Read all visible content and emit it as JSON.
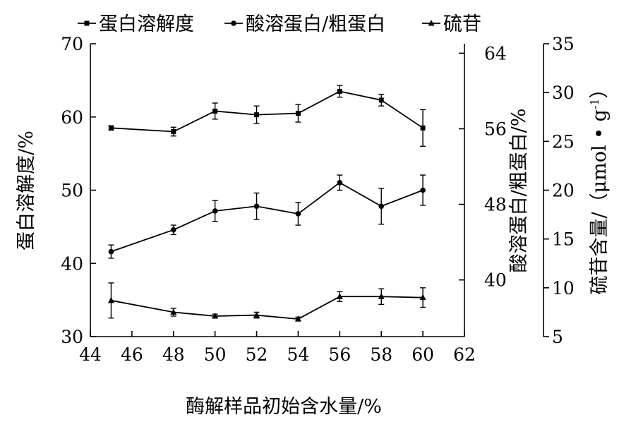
{
  "chart_data": {
    "type": "line",
    "x": [
      45,
      48,
      50,
      52,
      54,
      56,
      58,
      60
    ],
    "xlabel": "酶解样品初始含水量/%",
    "xlim": [
      44,
      62
    ],
    "xticks": [
      "44",
      "46",
      "48",
      "50",
      "52",
      "54",
      "56",
      "58",
      "60",
      "62"
    ],
    "axes": [
      {
        "id": "left",
        "label": "蛋白溶解度/%",
        "lim": [
          30,
          70
        ],
        "ticks": [
          "30",
          "40",
          "50",
          "60",
          "70"
        ]
      },
      {
        "id": "right1",
        "label": "酸溶蛋白/粗蛋白/%",
        "lim": [
          34,
          65
        ],
        "ticks": [
          "40",
          "48",
          "56",
          "64"
        ]
      },
      {
        "id": "right2",
        "label": "硫苷含量/（μmol • g",
        "label_sup": "-1",
        "label_close": "）",
        "lim": [
          5,
          35
        ],
        "ticks": [
          "5",
          "10",
          "15",
          "20",
          "25",
          "30",
          "35"
        ]
      }
    ],
    "series": [
      {
        "name": "蛋白溶解度",
        "marker": "square",
        "axis": "left",
        "values": [
          58.5,
          58.0,
          60.8,
          60.3,
          60.5,
          63.5,
          62.3,
          58.5
        ],
        "errors": [
          0.3,
          0.6,
          1.1,
          1.2,
          1.2,
          0.8,
          0.8,
          2.5
        ]
      },
      {
        "name": "酸溶蛋白/粗蛋白",
        "marker": "circle",
        "axis": "right1",
        "values": [
          43.0,
          45.3,
          47.3,
          47.8,
          47.0,
          50.3,
          47.8,
          49.5
        ],
        "errors": [
          0.7,
          0.5,
          1.1,
          1.4,
          1.2,
          0.8,
          1.9,
          1.6
        ]
      },
      {
        "name": "硫苷",
        "marker": "triangle",
        "axis": "right2",
        "values": [
          8.7,
          7.5,
          7.1,
          7.2,
          6.8,
          9.1,
          9.1,
          9.0
        ],
        "errors": [
          1.8,
          0.4,
          0.2,
          0.3,
          0.2,
          0.5,
          0.8,
          1.0
        ]
      }
    ],
    "legend_position": "top",
    "grid": false
  }
}
